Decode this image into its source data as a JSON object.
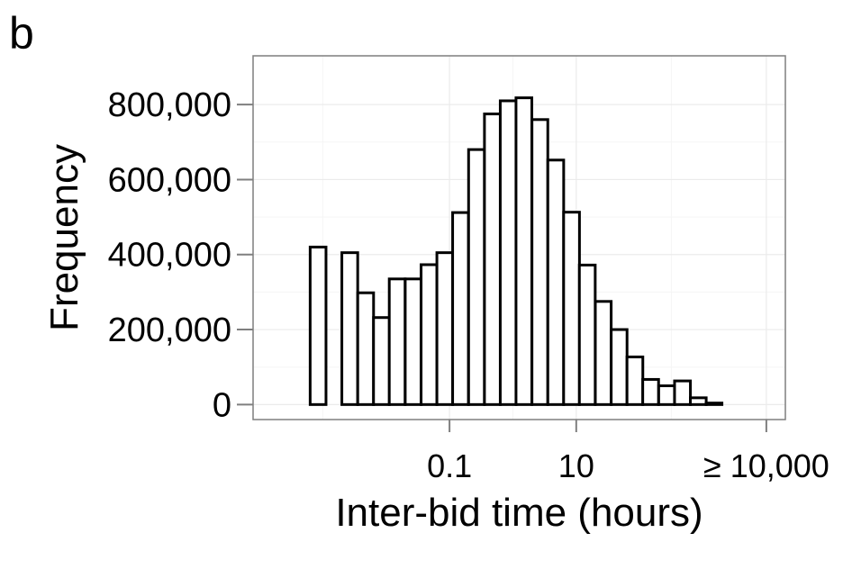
{
  "panel_label": "b",
  "chart_data": {
    "type": "bar",
    "xlabel": "Inter-bid time (hours)",
    "ylabel": "Frequency",
    "x_scale": "log10",
    "x_ticks": [
      {
        "value": 0.1,
        "label": "0.1"
      },
      {
        "value": 10,
        "label": "10"
      },
      {
        "value": 10000,
        "label": "≥ 10,000"
      }
    ],
    "y_ticks": [
      {
        "value": 0,
        "label": "0"
      },
      {
        "value": 200000,
        "label": "200,000"
      },
      {
        "value": 400000,
        "label": "400,000"
      },
      {
        "value": 600000,
        "label": "600,000"
      },
      {
        "value": 800000,
        "label": "800,000"
      }
    ],
    "ylim": [
      -40000,
      930000
    ],
    "xlim_log10": [
      -4.1,
      4.3
    ],
    "grid": true,
    "bin_width_log10": 0.25,
    "bins": [
      {
        "x_start": 0.0002,
        "count": 0
      },
      {
        "x_start": 0.000356,
        "count": 0
      },
      {
        "x_start": 0.000632,
        "count": 420000
      },
      {
        "x_start": 0.00112,
        "count": 0
      },
      {
        "x_start": 0.002,
        "count": 405000
      },
      {
        "x_start": 0.00356,
        "count": 298000
      },
      {
        "x_start": 0.00632,
        "count": 232000
      },
      {
        "x_start": 0.0112,
        "count": 335000
      },
      {
        "x_start": 0.02,
        "count": 335000
      },
      {
        "x_start": 0.0356,
        "count": 373000
      },
      {
        "x_start": 0.0632,
        "count": 405000
      },
      {
        "x_start": 0.112,
        "count": 512000
      },
      {
        "x_start": 0.2,
        "count": 680000
      },
      {
        "x_start": 0.356,
        "count": 775000
      },
      {
        "x_start": 0.632,
        "count": 810000
      },
      {
        "x_start": 1.12,
        "count": 818000
      },
      {
        "x_start": 2.0,
        "count": 760000
      },
      {
        "x_start": 3.56,
        "count": 652000
      },
      {
        "x_start": 6.32,
        "count": 513000
      },
      {
        "x_start": 11.2,
        "count": 372000
      },
      {
        "x_start": 20.0,
        "count": 275000
      },
      {
        "x_start": 35.6,
        "count": 200000
      },
      {
        "x_start": 63.2,
        "count": 127000
      },
      {
        "x_start": 112,
        "count": 67000
      },
      {
        "x_start": 200,
        "count": 50000
      },
      {
        "x_start": 356,
        "count": 63000
      },
      {
        "x_start": 632,
        "count": 18000
      },
      {
        "x_start": 1120,
        "count": 4000
      },
      {
        "x_start": 2000,
        "count": 0
      },
      {
        "x_start": 3560,
        "count": 0
      },
      {
        "x_start": 6320,
        "count": 0
      },
      {
        "x_start": 11200,
        "count": 0
      }
    ]
  }
}
